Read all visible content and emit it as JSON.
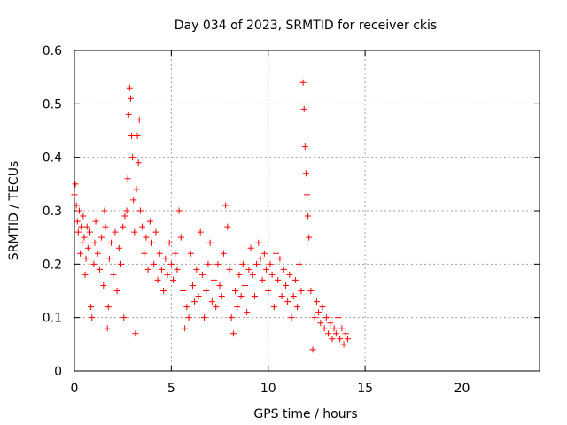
{
  "colors": {
    "series": "#ff0000",
    "grid": "#a0a0a0",
    "axis": "#000000"
  },
  "chart_data": {
    "type": "scatter",
    "title": "Day 034 of 2023, SRMTID for receiver ckis",
    "xlabel": "GPS time / hours",
    "ylabel": "SRMTID / TECUs",
    "xlim": [
      0,
      24
    ],
    "ylim": [
      0,
      0.6
    ],
    "xticks": [
      0,
      5,
      10,
      15,
      20
    ],
    "yticks": [
      0,
      0.1,
      0.2,
      0.3,
      0.4,
      0.5,
      0.6
    ],
    "xtick_labels": [
      "0",
      "5",
      "10",
      "15",
      "20"
    ],
    "ytick_labels": [
      "0",
      "0.1",
      "0.2",
      "0.3",
      "0.4",
      "0.5",
      "0.6"
    ],
    "grid": true,
    "marker": "+",
    "series": [
      {
        "name": "SRMTID",
        "points": [
          [
            0.0,
            0.33
          ],
          [
            0.05,
            0.35
          ],
          [
            0.1,
            0.31
          ],
          [
            0.15,
            0.28
          ],
          [
            0.2,
            0.26
          ],
          [
            0.25,
            0.3
          ],
          [
            0.3,
            0.22
          ],
          [
            0.35,
            0.27
          ],
          [
            0.4,
            0.24
          ],
          [
            0.45,
            0.29
          ],
          [
            0.5,
            0.25
          ],
          [
            0.55,
            0.18
          ],
          [
            0.6,
            0.21
          ],
          [
            0.65,
            0.27
          ],
          [
            0.7,
            0.23
          ],
          [
            0.8,
            0.26
          ],
          [
            0.85,
            0.12
          ],
          [
            0.9,
            0.1
          ],
          [
            1.0,
            0.2
          ],
          [
            1.05,
            0.24
          ],
          [
            1.1,
            0.28
          ],
          [
            1.2,
            0.22
          ],
          [
            1.3,
            0.19
          ],
          [
            1.4,
            0.25
          ],
          [
            1.5,
            0.16
          ],
          [
            1.55,
            0.3
          ],
          [
            1.6,
            0.27
          ],
          [
            1.7,
            0.08
          ],
          [
            1.75,
            0.12
          ],
          [
            1.8,
            0.21
          ],
          [
            1.9,
            0.24
          ],
          [
            2.0,
            0.18
          ],
          [
            2.1,
            0.26
          ],
          [
            2.2,
            0.15
          ],
          [
            2.3,
            0.23
          ],
          [
            2.4,
            0.2
          ],
          [
            2.5,
            0.27
          ],
          [
            2.55,
            0.1
          ],
          [
            2.6,
            0.29
          ],
          [
            2.7,
            0.3
          ],
          [
            2.75,
            0.36
          ],
          [
            2.8,
            0.48
          ],
          [
            2.85,
            0.53
          ],
          [
            2.9,
            0.51
          ],
          [
            2.95,
            0.44
          ],
          [
            3.0,
            0.4
          ],
          [
            3.05,
            0.32
          ],
          [
            3.1,
            0.26
          ],
          [
            3.15,
            0.07
          ],
          [
            3.2,
            0.34
          ],
          [
            3.25,
            0.44
          ],
          [
            3.3,
            0.39
          ],
          [
            3.35,
            0.47
          ],
          [
            3.4,
            0.3
          ],
          [
            3.5,
            0.27
          ],
          [
            3.6,
            0.22
          ],
          [
            3.7,
            0.25
          ],
          [
            3.8,
            0.19
          ],
          [
            3.9,
            0.28
          ],
          [
            4.0,
            0.24
          ],
          [
            4.1,
            0.2
          ],
          [
            4.2,
            0.26
          ],
          [
            4.3,
            0.17
          ],
          [
            4.4,
            0.22
          ],
          [
            4.5,
            0.19
          ],
          [
            4.6,
            0.15
          ],
          [
            4.7,
            0.21
          ],
          [
            4.8,
            0.18
          ],
          [
            4.9,
            0.24
          ],
          [
            5.0,
            0.2
          ],
          [
            5.1,
            0.17
          ],
          [
            5.2,
            0.22
          ],
          [
            5.3,
            0.19
          ],
          [
            5.4,
            0.3
          ],
          [
            5.5,
            0.25
          ],
          [
            5.6,
            0.15
          ],
          [
            5.7,
            0.08
          ],
          [
            5.8,
            0.12
          ],
          [
            5.9,
            0.1
          ],
          [
            6.0,
            0.22
          ],
          [
            6.1,
            0.16
          ],
          [
            6.2,
            0.13
          ],
          [
            6.3,
            0.19
          ],
          [
            6.4,
            0.14
          ],
          [
            6.5,
            0.26
          ],
          [
            6.6,
            0.18
          ],
          [
            6.7,
            0.1
          ],
          [
            6.8,
            0.15
          ],
          [
            6.9,
            0.2
          ],
          [
            7.0,
            0.24
          ],
          [
            7.1,
            0.13
          ],
          [
            7.2,
            0.17
          ],
          [
            7.3,
            0.12
          ],
          [
            7.4,
            0.2
          ],
          [
            7.5,
            0.16
          ],
          [
            7.6,
            0.14
          ],
          [
            7.7,
            0.22
          ],
          [
            7.8,
            0.31
          ],
          [
            7.9,
            0.27
          ],
          [
            8.0,
            0.19
          ],
          [
            8.1,
            0.1
          ],
          [
            8.2,
            0.07
          ],
          [
            8.3,
            0.15
          ],
          [
            8.4,
            0.12
          ],
          [
            8.5,
            0.18
          ],
          [
            8.6,
            0.14
          ],
          [
            8.7,
            0.2
          ],
          [
            8.8,
            0.16
          ],
          [
            8.9,
            0.11
          ],
          [
            9.0,
            0.19
          ],
          [
            9.1,
            0.23
          ],
          [
            9.2,
            0.18
          ],
          [
            9.3,
            0.14
          ],
          [
            9.4,
            0.2
          ],
          [
            9.5,
            0.24
          ],
          [
            9.6,
            0.21
          ],
          [
            9.7,
            0.17
          ],
          [
            9.8,
            0.22
          ],
          [
            9.9,
            0.19
          ],
          [
            10.0,
            0.15
          ],
          [
            10.1,
            0.2
          ],
          [
            10.2,
            0.18
          ],
          [
            10.3,
            0.12
          ],
          [
            10.4,
            0.22
          ],
          [
            10.5,
            0.17
          ],
          [
            10.6,
            0.21
          ],
          [
            10.7,
            0.14
          ],
          [
            10.8,
            0.19
          ],
          [
            10.9,
            0.16
          ],
          [
            11.0,
            0.13
          ],
          [
            11.1,
            0.18
          ],
          [
            11.2,
            0.1
          ],
          [
            11.3,
            0.14
          ],
          [
            11.4,
            0.17
          ],
          [
            11.5,
            0.12
          ],
          [
            11.6,
            0.2
          ],
          [
            11.7,
            0.15
          ],
          [
            11.8,
            0.54
          ],
          [
            11.85,
            0.49
          ],
          [
            11.9,
            0.42
          ],
          [
            11.95,
            0.37
          ],
          [
            12.0,
            0.33
          ],
          [
            12.05,
            0.29
          ],
          [
            12.1,
            0.25
          ],
          [
            12.2,
            0.15
          ],
          [
            12.3,
            0.04
          ],
          [
            12.4,
            0.1
          ],
          [
            12.5,
            0.13
          ],
          [
            12.6,
            0.11
          ],
          [
            12.7,
            0.09
          ],
          [
            12.8,
            0.12
          ],
          [
            12.9,
            0.08
          ],
          [
            13.0,
            0.1
          ],
          [
            13.1,
            0.07
          ],
          [
            13.2,
            0.09
          ],
          [
            13.3,
            0.06
          ],
          [
            13.4,
            0.08
          ],
          [
            13.5,
            0.07
          ],
          [
            13.6,
            0.1
          ],
          [
            13.7,
            0.06
          ],
          [
            13.8,
            0.08
          ],
          [
            13.9,
            0.05
          ],
          [
            14.0,
            0.07
          ],
          [
            14.1,
            0.06
          ]
        ]
      }
    ]
  }
}
